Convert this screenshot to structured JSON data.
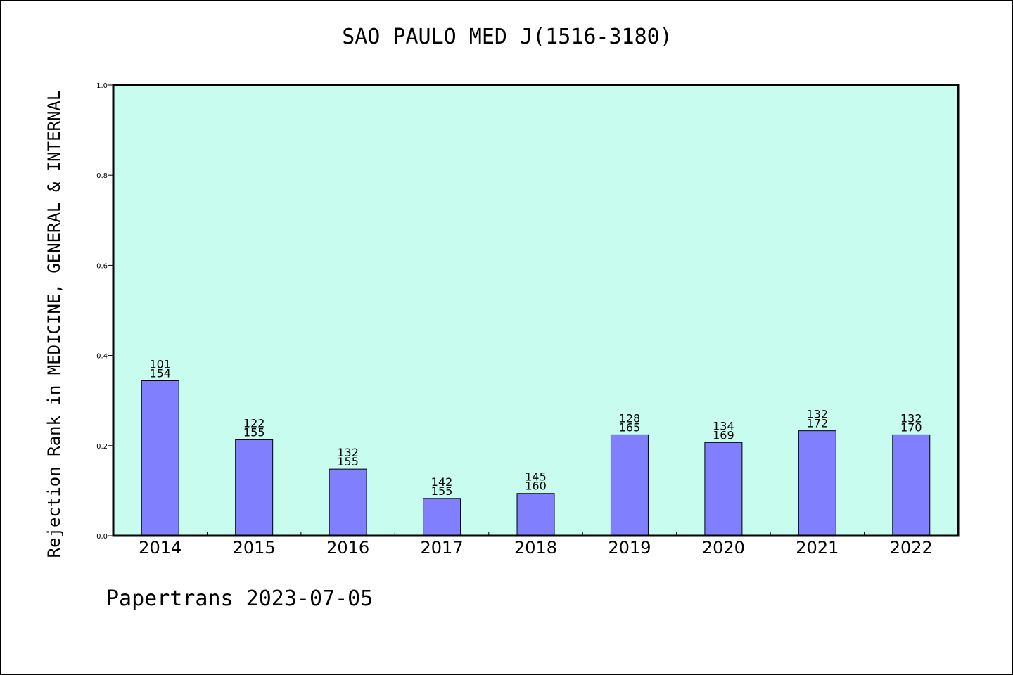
{
  "title": "SAO PAULO MED J(1516-3180)",
  "ylabel": "Rejection Rank in MEDICINE, GENERAL & INTERNAL",
  "footer": "Papertrans 2023-07-05",
  "colors": {
    "plot_background": "#c8fcee",
    "bar_fill": "#8080ff",
    "bar_stroke": "#000000"
  },
  "chart_data": {
    "type": "bar",
    "title": "SAO PAULO MED J(1516-3180)",
    "xlabel": "",
    "ylabel": "Rejection Rank in MEDICINE, GENERAL & INTERNAL",
    "ylim": [
      0,
      1.0
    ],
    "yticks": [
      "0.0",
      "0.2",
      "0.4",
      "0.6",
      "0.8",
      "1.0"
    ],
    "grid": false,
    "categories": [
      "2014",
      "2015",
      "2016",
      "2017",
      "2018",
      "2019",
      "2020",
      "2021",
      "2022"
    ],
    "values": [
      0.344,
      0.213,
      0.148,
      0.083,
      0.094,
      0.224,
      0.207,
      0.233,
      0.224
    ],
    "labels_top": [
      "101",
      "122",
      "132",
      "142",
      "145",
      "128",
      "134",
      "132",
      "132"
    ],
    "labels_bottom": [
      "154",
      "155",
      "155",
      "155",
      "160",
      "165",
      "169",
      "172",
      "170"
    ]
  }
}
